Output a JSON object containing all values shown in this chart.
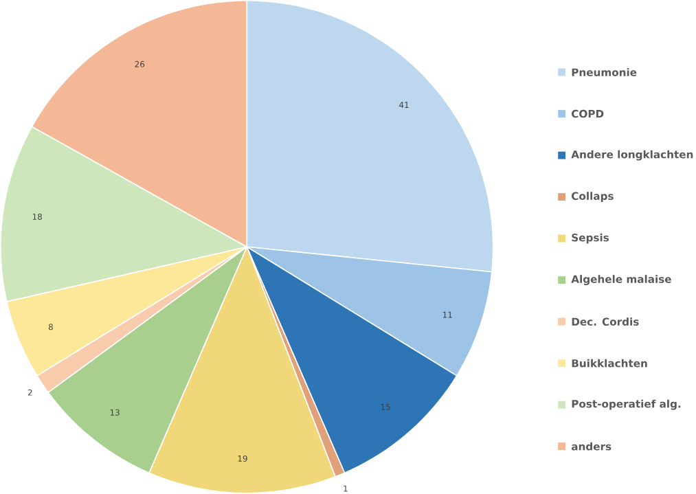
{
  "chart_data": {
    "type": "pie",
    "categories": [
      "Pneumonie",
      "COPD",
      "Andere longklachten",
      "Collaps",
      "Sepsis",
      "Algehele malaise",
      "Dec. Cordis",
      "Buikklachten",
      "Post-operatief alg.",
      "anders"
    ],
    "values": [
      41,
      11,
      15,
      1,
      19,
      13,
      2,
      8,
      18,
      26
    ],
    "colors": [
      "#bdd7ee",
      "#9dc3e6",
      "#2e75b6",
      "#e0a07a",
      "#f0d77a",
      "#a9cf8e",
      "#f8cbad",
      "#fde89a",
      "#cde6bc",
      "#f4b896"
    ],
    "data_labels": true,
    "legend": "right"
  }
}
